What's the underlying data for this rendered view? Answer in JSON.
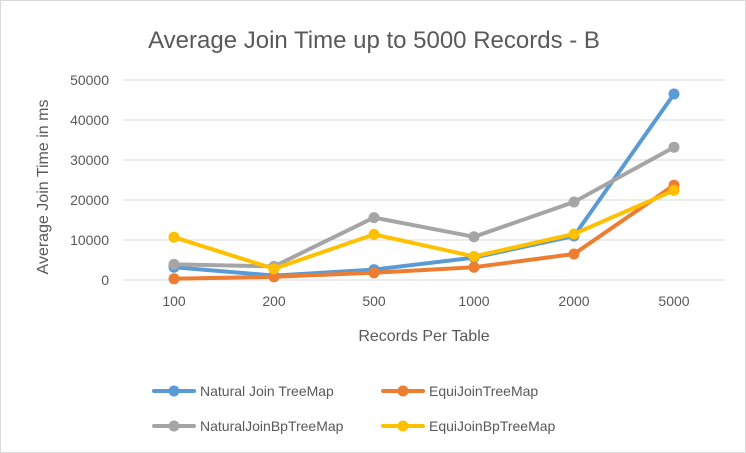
{
  "chart_data": {
    "type": "line",
    "title": "Average Join Time up to 5000 Records - B",
    "xlabel": "Records Per Table",
    "ylabel": "Average Join Time in ms",
    "categories": [
      "100",
      "200",
      "500",
      "1000",
      "2000",
      "5000"
    ],
    "ylim": [
      0,
      50000
    ],
    "yticks": [
      "0",
      "10000",
      "20000",
      "30000",
      "40000",
      "50000"
    ],
    "grid": "horizontal",
    "legend_position": "bottom",
    "series": [
      {
        "name": "Natural Join TreeMap",
        "color": "#5b9bd5",
        "values": [
          3200,
          1100,
          2600,
          5600,
          11000,
          46500
        ]
      },
      {
        "name": "EquiJoinTreeMap",
        "color": "#ed7d31",
        "values": [
          300,
          800,
          1800,
          3200,
          6500,
          23700
        ]
      },
      {
        "name": "NaturalJoinBpTreeMap",
        "color": "#a5a5a5",
        "values": [
          3900,
          3400,
          15600,
          10800,
          19500,
          33200
        ]
      },
      {
        "name": "EquiJoinBpTreeMap",
        "color": "#ffc000",
        "values": [
          10700,
          2800,
          11400,
          5900,
          11500,
          22400
        ]
      }
    ]
  }
}
